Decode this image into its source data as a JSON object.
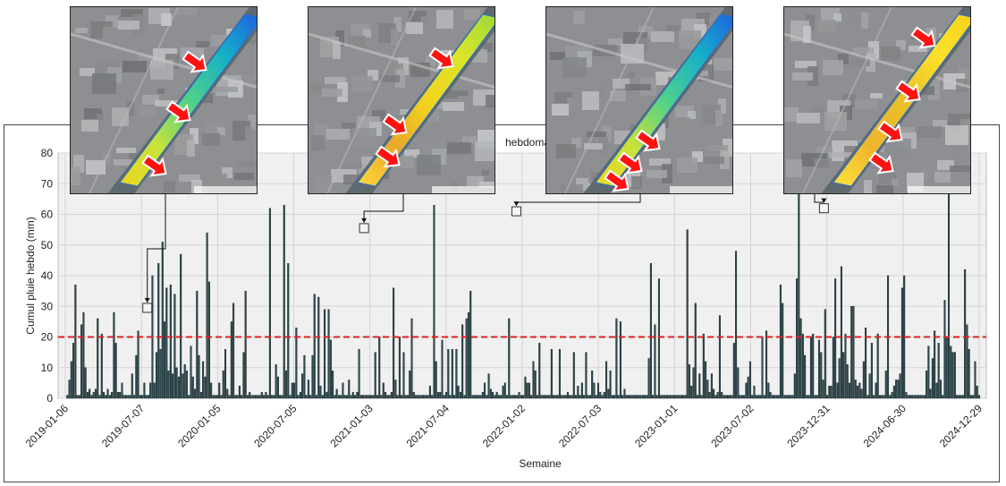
{
  "chart_data": {
    "type": "bar",
    "title": "hebdoma",
    "xlabel": "Semaine",
    "ylabel": "Cumul pluie hebdo (mm)",
    "ylim": [
      0,
      80
    ],
    "yticks": [
      0,
      10,
      20,
      30,
      40,
      50,
      60,
      70,
      80
    ],
    "x_start": "2019-01-06",
    "x_end": "2024-12-29",
    "xticks": [
      "2019-01-06",
      "2019-07-07",
      "2020-01-05",
      "2020-07-05",
      "2021-01-03",
      "2021-07-04",
      "2022-01-02",
      "2022-07-03",
      "2023-01-01",
      "2023-07-02",
      "2023-12-31",
      "2024-06-30",
      "2024-12-29"
    ],
    "threshold": 20,
    "threshold_color": "#e02020",
    "bar_color": "#2e4a4f",
    "grid": true,
    "values": [
      0,
      1,
      6,
      12,
      18,
      37,
      1,
      1,
      24,
      28,
      10,
      2,
      3,
      1,
      2,
      3,
      26,
      1,
      21,
      2,
      1,
      3,
      1,
      2,
      28,
      18,
      2,
      2,
      5,
      1,
      1,
      1,
      1,
      8,
      1,
      14,
      22,
      1,
      1,
      5,
      1,
      1,
      5,
      40,
      5,
      15,
      44,
      16,
      51,
      25,
      36,
      9,
      37,
      8,
      34,
      10,
      7,
      47,
      8,
      11,
      9,
      1,
      17,
      7,
      3,
      35,
      14,
      2,
      12,
      7,
      54,
      38,
      5,
      1,
      1,
      1,
      5,
      1,
      9,
      16,
      3,
      1,
      25,
      31,
      1,
      1,
      4,
      1,
      15,
      35,
      1,
      2,
      1,
      1,
      1,
      1,
      1,
      2,
      1,
      2,
      1,
      62,
      1,
      1,
      11,
      7,
      1,
      1,
      63,
      9,
      44,
      1,
      5,
      5,
      23,
      1,
      2,
      8,
      14,
      1,
      6,
      1,
      14,
      34,
      1,
      33,
      4,
      1,
      29,
      2,
      29,
      19,
      9,
      1,
      3,
      1,
      1,
      5,
      1,
      1,
      6,
      1,
      2,
      1,
      2,
      16,
      1,
      1,
      1,
      1,
      1,
      1,
      1,
      15,
      1,
      20,
      1,
      5,
      2,
      1,
      1,
      2,
      36,
      6,
      1,
      20,
      1,
      15,
      1,
      1,
      9,
      26,
      2,
      1,
      1,
      1,
      1,
      1,
      1,
      1,
      4,
      1,
      63,
      12,
      2,
      2,
      19,
      1,
      2,
      16,
      1,
      16,
      1,
      16,
      4,
      2,
      24,
      1,
      26,
      28,
      35,
      1,
      1,
      1,
      1,
      1,
      2,
      5,
      1,
      8,
      3,
      2,
      1,
      2,
      1,
      1,
      4,
      5,
      1,
      26,
      1,
      1,
      1,
      1,
      2,
      1,
      1,
      7,
      5,
      5,
      1,
      12,
      9,
      1,
      18,
      1,
      1,
      1,
      1,
      1,
      16,
      1,
      1,
      1,
      16,
      1,
      1,
      1,
      2,
      1,
      1,
      15,
      1,
      4,
      1,
      5,
      1,
      15,
      1,
      1,
      9,
      5,
      1,
      5,
      2,
      1,
      2,
      12,
      3,
      9,
      1,
      1,
      26,
      1,
      25,
      1,
      3,
      1,
      1,
      1,
      1,
      1,
      1,
      1,
      1,
      1,
      1,
      1,
      13,
      44,
      1,
      24,
      1,
      39,
      1,
      1,
      1,
      1,
      1,
      1,
      1,
      1,
      1,
      1,
      1,
      1,
      1,
      55,
      11,
      4,
      10,
      31,
      1,
      8,
      1,
      21,
      12,
      6,
      2,
      8,
      3,
      1,
      2,
      27,
      2,
      1,
      1,
      1,
      1,
      1,
      18,
      48,
      10,
      1,
      1,
      1,
      5,
      7,
      12,
      1,
      4,
      1,
      1,
      1,
      20,
      1,
      22,
      5,
      2,
      1,
      1,
      1,
      1,
      37,
      31,
      1,
      1,
      1,
      1,
      1,
      8,
      39,
      70,
      26,
      21,
      14,
      1,
      1,
      20,
      21,
      1,
      1,
      19,
      15,
      6,
      29,
      1,
      4,
      4,
      20,
      39,
      5,
      13,
      43,
      15,
      21,
      11,
      5,
      30,
      30,
      6,
      4,
      5,
      3,
      12,
      23,
      1,
      8,
      18,
      1,
      5,
      21,
      1,
      1,
      1,
      9,
      40,
      1,
      2,
      4,
      6,
      6,
      8,
      36,
      40,
      2,
      1,
      1,
      1,
      1,
      1,
      1,
      1,
      1,
      1,
      9,
      17,
      3,
      13,
      22,
      5,
      18,
      6,
      1,
      32,
      20,
      70,
      17,
      15,
      15,
      1,
      1,
      1,
      1,
      42,
      24,
      16,
      1,
      1,
      12,
      4,
      1
    ]
  },
  "insets": [
    {
      "name": "inset-2019",
      "tint": "blue-green",
      "attribution": "Map data © Mapbox © OpenStreetMap"
    },
    {
      "name": "inset-2021",
      "tint": "yellow-green",
      "attribution": "Map data © Mapbox © OpenStreetMap"
    },
    {
      "name": "inset-2022",
      "tint": "blue-green",
      "attribution": "Map data © Mapbox © OpenStreetMap"
    },
    {
      "name": "inset-2023",
      "tint": "yellow",
      "attribution": "Map data © Mapbox © OpenStreetMap"
    }
  ],
  "callouts": [
    {
      "target_date": "2019-07-21",
      "value": 29.5
    },
    {
      "target_date": "2020-12-20",
      "value": 55.5
    },
    {
      "target_date": "2021-12-19",
      "value": 61
    },
    {
      "target_date": "2023-12-24",
      "value": 62
    }
  ]
}
